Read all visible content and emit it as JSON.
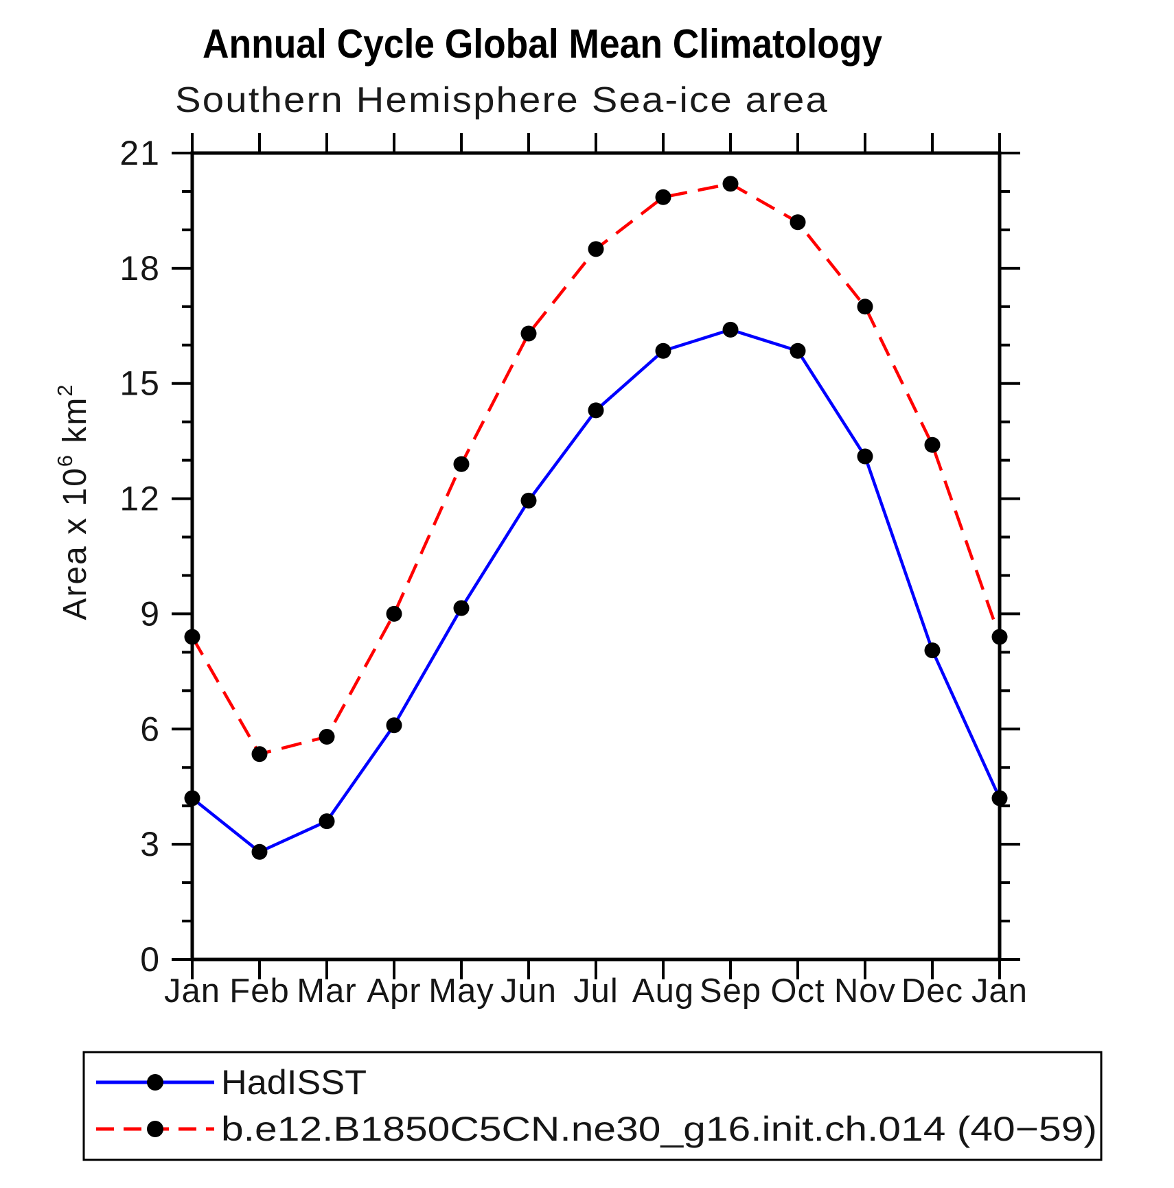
{
  "chart_data": {
    "type": "line",
    "title": "Annual Cycle Global Mean Climatology",
    "subtitle": "Southern Hemisphere Sea-ice area",
    "ylabel": "Area x 10⁶ km²",
    "ylabel_parts": [
      {
        "text": "Area x 10",
        "sup": false
      },
      {
        "text": "6",
        "sup": true
      },
      {
        "text": " km",
        "sup": false
      },
      {
        "text": "2",
        "sup": true
      }
    ],
    "xlabel": "",
    "categories": [
      "Jan",
      "Feb",
      "Mar",
      "Apr",
      "May",
      "Jun",
      "Jul",
      "Aug",
      "Sep",
      "Oct",
      "Nov",
      "Dec",
      "Jan"
    ],
    "ylim": [
      0,
      21
    ],
    "ytick_step": 3,
    "yminor_step": 1,
    "ytick_labels": [
      "0",
      "3",
      "6",
      "9",
      "12",
      "15",
      "18",
      "21"
    ],
    "grid": false,
    "legend_position": "bottom",
    "axis_color": "#000000",
    "marker_color": "#000000",
    "series": [
      {
        "name": "HadISST",
        "color": "#0000ff",
        "line_style": "solid",
        "marker": "circle",
        "values": [
          4.2,
          2.8,
          3.6,
          6.1,
          9.15,
          11.95,
          14.3,
          15.85,
          16.4,
          15.85,
          13.1,
          8.05,
          4.2
        ]
      },
      {
        "name": "b.e12.B1850C5CN.ne30_g16.init.ch.014 (40−59)",
        "color": "#ff0000",
        "line_style": "dashed",
        "marker": "circle",
        "values": [
          8.4,
          5.35,
          5.8,
          9.0,
          12.9,
          16.3,
          18.5,
          19.85,
          20.2,
          19.2,
          17.0,
          13.4,
          8.4
        ]
      }
    ]
  }
}
